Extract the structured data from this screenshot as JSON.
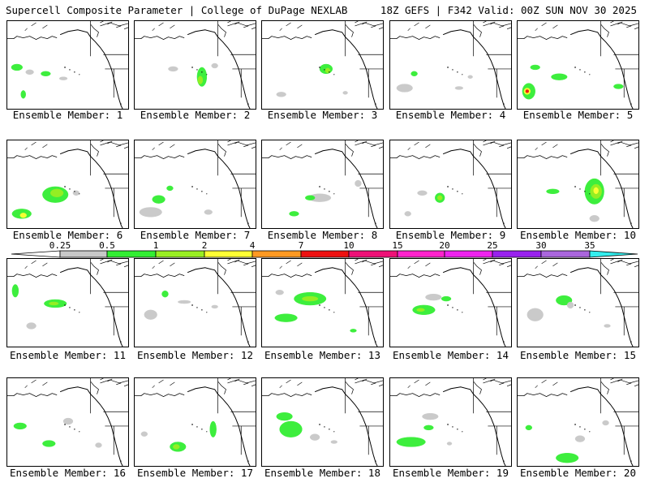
{
  "header": {
    "title": "Supercell Composite Parameter | College of DuPage NEXLAB",
    "run_info": "18Z GEFS | F342 Valid: 00Z SUN NOV 30 2025"
  },
  "members": [
    {
      "caption": "Ensemble Member: 1"
    },
    {
      "caption": "Ensemble Member: 2"
    },
    {
      "caption": "Ensemble Member: 3"
    },
    {
      "caption": "Ensemble Member: 4"
    },
    {
      "caption": "Ensemble Member: 5"
    },
    {
      "caption": "Ensemble Member: 6"
    },
    {
      "caption": "Ensemble Member: 7"
    },
    {
      "caption": "Ensemble Member: 8"
    },
    {
      "caption": "Ensemble Member: 9"
    },
    {
      "caption": "Ensemble Member: 10"
    },
    {
      "caption": "Ensemble Member: 11"
    },
    {
      "caption": "Ensemble Member: 12"
    },
    {
      "caption": "Ensemble Member: 13"
    },
    {
      "caption": "Ensemble Member: 14"
    },
    {
      "caption": "Ensemble Member: 15"
    },
    {
      "caption": "Ensemble Member: 16"
    },
    {
      "caption": "Ensemble Member: 17"
    },
    {
      "caption": "Ensemble Member: 18"
    },
    {
      "caption": "Ensemble Member: 19"
    },
    {
      "caption": "Ensemble Member: 20"
    }
  ],
  "legend": {
    "ticks": [
      "0.25",
      "0.5",
      "1",
      "2",
      "4",
      "7",
      "10",
      "15",
      "20",
      "25",
      "30",
      "35"
    ],
    "colors": [
      "#c8c8c8",
      "#33ee33",
      "#99ee22",
      "#ffff33",
      "#ff9922",
      "#ee1111",
      "#ee1177",
      "#ff22cc",
      "#ee22ee",
      "#9922ee",
      "#aa66dd",
      "#33eeee"
    ]
  },
  "colors": {
    "low": "#c8c8c8",
    "mid": "#33ee33",
    "high": "#99ee22",
    "peak": "#ffff33",
    "max": "#ee1111"
  }
}
